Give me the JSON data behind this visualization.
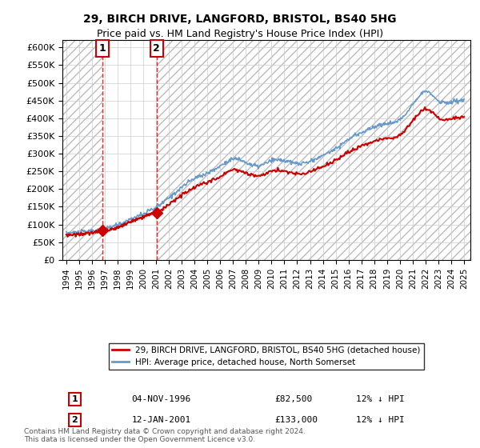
{
  "title_line1": "29, BIRCH DRIVE, LANGFORD, BRISTOL, BS40 5HG",
  "title_line2": "Price paid vs. HM Land Registry's House Price Index (HPI)",
  "ytick_values": [
    0,
    50000,
    100000,
    150000,
    200000,
    250000,
    300000,
    350000,
    400000,
    450000,
    500000,
    550000,
    600000
  ],
  "ylim": [
    0,
    620000
  ],
  "xlim_start": 1993.7,
  "xlim_end": 2025.5,
  "hpi_color": "#6699cc",
  "price_color": "#cc0000",
  "marker_color": "#cc0000",
  "sale1_x": 1996.84,
  "sale1_y": 82500,
  "sale2_x": 2001.04,
  "sale2_y": 133000,
  "legend_label1": "29, BIRCH DRIVE, LANGFORD, BRISTOL, BS40 5HG (detached house)",
  "legend_label2": "HPI: Average price, detached house, North Somerset",
  "transaction1_label": "1",
  "transaction1_date": "04-NOV-1996",
  "transaction1_price": "£82,500",
  "transaction1_hpi": "12% ↓ HPI",
  "transaction2_label": "2",
  "transaction2_date": "12-JAN-2001",
  "transaction2_price": "£133,000",
  "transaction2_hpi": "12% ↓ HPI",
  "footer": "Contains HM Land Registry data © Crown copyright and database right 2024.\nThis data is licensed under the Open Government Licence v3.0.",
  "hpi_anchor_years": [
    1994,
    1995,
    1996,
    1997,
    1998,
    1999,
    2000,
    2001,
    2002,
    2003,
    2004,
    2005,
    2006,
    2007,
    2008,
    2009,
    2010,
    2011,
    2012,
    2013,
    2014,
    2015,
    2016,
    2017,
    2018,
    2019,
    2020,
    2021,
    2022,
    2023,
    2024,
    2025
  ],
  "hpi_anchor_values": [
    75000,
    78000,
    82000,
    90000,
    98000,
    115000,
    130000,
    148000,
    175000,
    205000,
    230000,
    245000,
    265000,
    285000,
    275000,
    265000,
    280000,
    280000,
    272000,
    278000,
    295000,
    315000,
    340000,
    360000,
    375000,
    385000,
    395000,
    440000,
    475000,
    450000,
    445000,
    450000
  ]
}
